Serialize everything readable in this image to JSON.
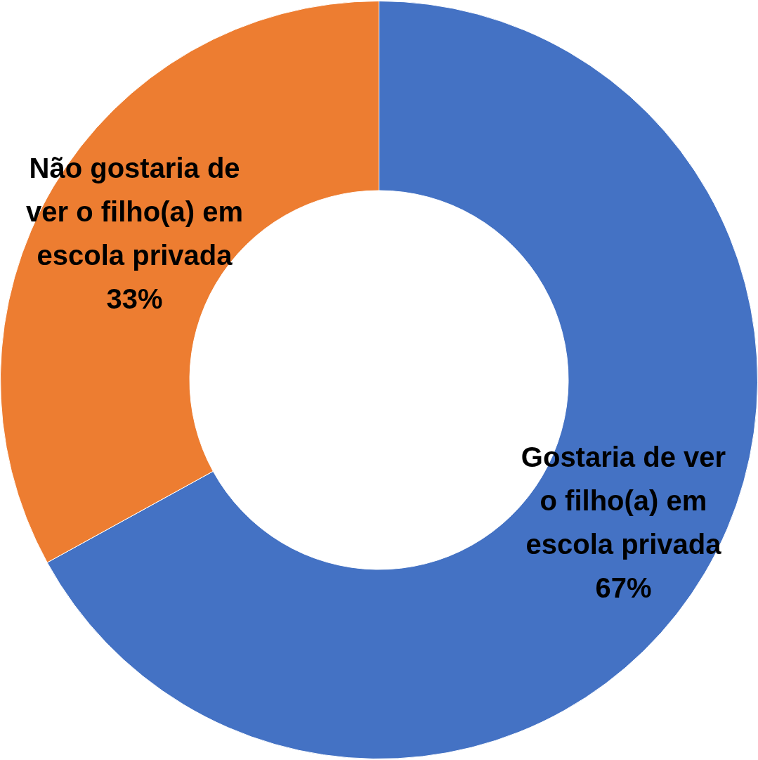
{
  "chart_data": {
    "type": "donut",
    "categories": [
      "Gostaria de ver o filho(a) em escola privada",
      "Não gostaria de ver o filho(a) em escola privada"
    ],
    "values": [
      67,
      33
    ],
    "colors": [
      "#4472c4",
      "#ed7d31"
    ],
    "value_labels": [
      "67%",
      "33%"
    ],
    "legend": false
  }
}
